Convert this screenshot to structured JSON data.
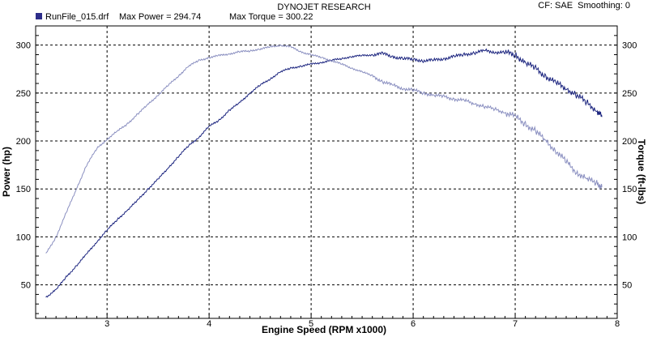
{
  "header": {
    "title": "DYNOJET RESEARCH",
    "cf_info": "CF: SAE  Smoothing: 0",
    "run_file": "RunFile_015.drf",
    "max_power_label": "Max Power = 294.74",
    "max_torque_label": "Max Torque = 300.22"
  },
  "chart_data": {
    "type": "line",
    "xlabel": "Engine Speed (RPM x1000)",
    "ylabel_left": "Power (hp)",
    "ylabel_right": "Torque (ft-lbs)",
    "x_ticks": [
      3,
      4,
      5,
      6,
      7,
      8
    ],
    "y_ticks": [
      50,
      100,
      150,
      200,
      250,
      300
    ],
    "xlim": [
      2.3,
      8.0
    ],
    "ylim": [
      15,
      320
    ],
    "grid": true,
    "series": [
      {
        "name": "Power (hp)",
        "axis": "left",
        "color": "#1a237e",
        "x": [
          2.4,
          2.5,
          2.6,
          2.7,
          2.8,
          2.9,
          3.0,
          3.1,
          3.2,
          3.3,
          3.4,
          3.5,
          3.6,
          3.7,
          3.8,
          3.9,
          4.0,
          4.1,
          4.2,
          4.3,
          4.4,
          4.5,
          4.6,
          4.7,
          4.8,
          4.9,
          5.0,
          5.1,
          5.2,
          5.3,
          5.4,
          5.5,
          5.6,
          5.7,
          5.8,
          5.9,
          6.0,
          6.1,
          6.2,
          6.3,
          6.4,
          6.5,
          6.6,
          6.7,
          6.8,
          6.9,
          7.0,
          7.1,
          7.2,
          7.3,
          7.4,
          7.5,
          7.6,
          7.7,
          7.8,
          7.85
        ],
        "values": [
          37,
          45,
          58,
          70,
          82,
          95,
          107,
          118,
          128,
          138,
          150,
          160,
          172,
          184,
          195,
          204,
          215,
          222,
          232,
          240,
          250,
          258,
          265,
          272,
          276,
          278,
          280,
          282,
          284,
          286,
          288,
          289,
          290,
          291,
          288,
          286,
          285,
          284,
          284,
          286,
          288,
          290,
          292,
          294,
          293,
          292,
          290,
          282,
          275,
          268,
          260,
          255,
          248,
          240,
          232,
          225
        ]
      },
      {
        "name": "Torque (ft-lbs)",
        "axis": "right",
        "color": "#8a8fc0",
        "x": [
          2.4,
          2.5,
          2.6,
          2.7,
          2.8,
          2.9,
          3.0,
          3.1,
          3.2,
          3.3,
          3.4,
          3.5,
          3.6,
          3.7,
          3.8,
          3.9,
          4.0,
          4.1,
          4.2,
          4.3,
          4.4,
          4.5,
          4.6,
          4.7,
          4.8,
          4.9,
          5.0,
          5.1,
          5.2,
          5.3,
          5.4,
          5.5,
          5.6,
          5.7,
          5.8,
          5.9,
          6.0,
          6.1,
          6.2,
          6.3,
          6.4,
          6.5,
          6.6,
          6.7,
          6.8,
          6.9,
          7.0,
          7.1,
          7.2,
          7.3,
          7.4,
          7.5,
          7.6,
          7.7,
          7.8,
          7.85
        ],
        "values": [
          82,
          100,
          125,
          150,
          175,
          192,
          202,
          210,
          218,
          228,
          238,
          248,
          258,
          268,
          278,
          284,
          287,
          289,
          291,
          293,
          294,
          296,
          298,
          300,
          298,
          293,
          290,
          287,
          284,
          280,
          276,
          272,
          268,
          262,
          258,
          255,
          253,
          250,
          248,
          246,
          244,
          242,
          239,
          236,
          233,
          230,
          225,
          218,
          210,
          200,
          190,
          178,
          168,
          160,
          156,
          152
        ]
      }
    ]
  }
}
